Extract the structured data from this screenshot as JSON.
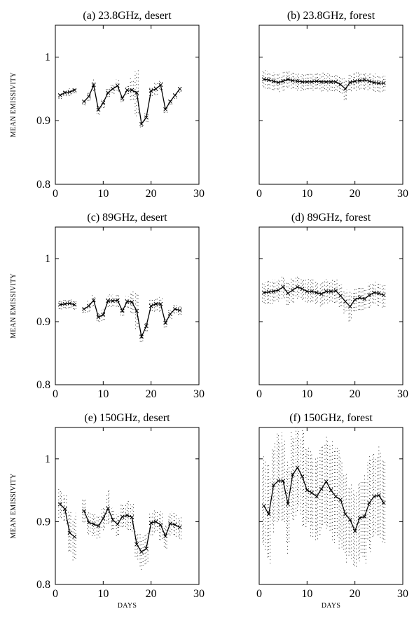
{
  "chart_data": [
    {
      "type": "line",
      "title": "(a) 23.8GHz, desert",
      "xlabel": "",
      "ylabel": "MEAN EMISSIVITY",
      "xlim": [
        0,
        30
      ],
      "ylim": [
        0.8,
        1.05
      ],
      "xticks": [
        "0",
        "10",
        "20",
        "30"
      ],
      "yticks": [
        "0.8",
        "0.9",
        "1"
      ],
      "series": [
        {
          "x": [
            1,
            2,
            3,
            4
          ],
          "y": [
            0.94,
            0.944,
            0.945,
            0.948
          ]
        },
        {
          "x": [
            6,
            7,
            8,
            9,
            10,
            11,
            12,
            13,
            14,
            15,
            16,
            17,
            18,
            19,
            20,
            21,
            22,
            23,
            24,
            25,
            26
          ],
          "y": [
            0.93,
            0.938,
            0.956,
            0.917,
            0.928,
            0.944,
            0.95,
            0.955,
            0.935,
            0.948,
            0.948,
            0.944,
            0.895,
            0.905,
            0.947,
            0.95,
            0.956,
            0.918,
            0.93,
            0.94,
            0.95
          ]
        }
      ],
      "spread": [
        0.006,
        0.006,
        0.006,
        0.006,
        0.006,
        0.008,
        0.01,
        0.008,
        0.008,
        0.008,
        0.008,
        0.01,
        0.006,
        0.008,
        0.02,
        0.04,
        0.006,
        0.008,
        0.008,
        0.01,
        0.008,
        0.006,
        0.006,
        0.006,
        0.006
      ]
    },
    {
      "type": "line",
      "title": "(b) 23.8GHz, forest",
      "xlabel": "",
      "ylabel": "",
      "xlim": [
        0,
        30
      ],
      "ylim": [
        0.8,
        1.05
      ],
      "xticks": [
        "0",
        "10",
        "20",
        "30"
      ],
      "yticks": [],
      "series": [
        {
          "x": [
            1,
            2,
            3,
            4,
            5,
            6,
            7,
            8,
            9,
            10,
            11,
            12,
            13,
            14,
            15,
            16,
            17,
            18,
            19,
            20,
            21,
            22,
            23,
            24,
            25,
            26
          ],
          "y": [
            0.965,
            0.964,
            0.962,
            0.96,
            0.962,
            0.965,
            0.963,
            0.962,
            0.961,
            0.961,
            0.961,
            0.962,
            0.961,
            0.961,
            0.961,
            0.961,
            0.957,
            0.95,
            0.96,
            0.962,
            0.963,
            0.964,
            0.962,
            0.96,
            0.959,
            0.959
          ]
        }
      ],
      "spread": [
        0.015,
        0.015,
        0.015,
        0.015,
        0.015,
        0.015,
        0.015,
        0.015,
        0.015,
        0.015,
        0.015,
        0.015,
        0.015,
        0.015,
        0.015,
        0.015,
        0.015,
        0.02,
        0.015,
        0.015,
        0.015,
        0.015,
        0.015,
        0.015,
        0.015,
        0.015
      ]
    },
    {
      "type": "line",
      "title": "(c) 89GHz, desert",
      "xlabel": "",
      "ylabel": "MEAN EMISSIVITY",
      "xlim": [
        0,
        30
      ],
      "ylim": [
        0.8,
        1.05
      ],
      "xticks": [
        "0",
        "10",
        "20",
        "30"
      ],
      "yticks": [
        "0.8",
        "0.9",
        "1"
      ],
      "series": [
        {
          "x": [
            1,
            2,
            3,
            4
          ],
          "y": [
            0.927,
            0.928,
            0.929,
            0.927
          ]
        },
        {
          "x": [
            6,
            7,
            8,
            9,
            10,
            11,
            12,
            13,
            14,
            15,
            16,
            17,
            18,
            19,
            20,
            21,
            22,
            23,
            24,
            25,
            26
          ],
          "y": [
            0.92,
            0.925,
            0.934,
            0.907,
            0.911,
            0.933,
            0.933,
            0.934,
            0.917,
            0.932,
            0.931,
            0.917,
            0.876,
            0.893,
            0.925,
            0.928,
            0.928,
            0.898,
            0.912,
            0.92,
            0.918
          ]
        }
      ],
      "spread": [
        0.008,
        0.008,
        0.008,
        0.008,
        0.006,
        0.01,
        0.01,
        0.008,
        0.01,
        0.01,
        0.01,
        0.012,
        0.008,
        0.01,
        0.02,
        0.035,
        0.008,
        0.01,
        0.01,
        0.012,
        0.012,
        0.008,
        0.008,
        0.008,
        0.008
      ]
    },
    {
      "type": "line",
      "title": "(d) 89GHz, forest",
      "xlabel": "",
      "ylabel": "",
      "xlim": [
        0,
        30
      ],
      "ylim": [
        0.8,
        1.05
      ],
      "xticks": [
        "0",
        "10",
        "20",
        "30"
      ],
      "yticks": [],
      "series": [
        {
          "x": [
            1,
            2,
            3,
            4,
            5,
            6,
            7,
            8,
            9,
            10,
            11,
            12,
            13,
            14,
            15,
            16,
            17,
            18,
            19,
            20,
            21,
            22,
            23,
            24,
            25,
            26
          ],
          "y": [
            0.946,
            0.947,
            0.948,
            0.95,
            0.955,
            0.945,
            0.95,
            0.955,
            0.952,
            0.948,
            0.948,
            0.946,
            0.944,
            0.948,
            0.948,
            0.949,
            0.941,
            0.932,
            0.924,
            0.935,
            0.938,
            0.936,
            0.942,
            0.946,
            0.945,
            0.942
          ]
        }
      ],
      "spread": [
        0.02,
        0.02,
        0.02,
        0.02,
        0.02,
        0.02,
        0.02,
        0.02,
        0.02,
        0.02,
        0.02,
        0.02,
        0.02,
        0.02,
        0.02,
        0.02,
        0.02,
        0.02,
        0.025,
        0.02,
        0.02,
        0.02,
        0.02,
        0.02,
        0.02,
        0.02
      ]
    },
    {
      "type": "line",
      "title": "(e) 150GHz, desert",
      "xlabel": "DAYS",
      "ylabel": "MEAN EMISSIVITY",
      "xlim": [
        0,
        30
      ],
      "ylim": [
        0.8,
        1.05
      ],
      "xticks": [
        "0",
        "10",
        "20",
        "30"
      ],
      "yticks": [
        "0.8",
        "0.9",
        "1"
      ],
      "series": [
        {
          "x": [
            1,
            2,
            3,
            4
          ],
          "y": [
            0.928,
            0.92,
            0.882,
            0.876
          ]
        },
        {
          "x": [
            6,
            7,
            8,
            9,
            10,
            11,
            12,
            13,
            14,
            15,
            16,
            17,
            18,
            19,
            20,
            21,
            22,
            23,
            24,
            25,
            26
          ],
          "y": [
            0.917,
            0.899,
            0.896,
            0.893,
            0.905,
            0.921,
            0.903,
            0.896,
            0.908,
            0.91,
            0.907,
            0.864,
            0.852,
            0.857,
            0.898,
            0.9,
            0.895,
            0.877,
            0.897,
            0.895,
            0.891
          ]
        }
      ],
      "spread": [
        0.025,
        0.025,
        0.04,
        0.04,
        0.02,
        0.02,
        0.02,
        0.02,
        0.02,
        0.03,
        0.02,
        0.02,
        0.02,
        0.025,
        0.025,
        0.025,
        0.03,
        0.03,
        0.02,
        0.02,
        0.025,
        0.02,
        0.02,
        0.02,
        0.02
      ]
    },
    {
      "type": "line",
      "title": "(f) 150GHz, forest",
      "xlabel": "DAYS",
      "ylabel": "",
      "xlim": [
        0,
        30
      ],
      "ylim": [
        0.8,
        1.05
      ],
      "xticks": [
        "0",
        "10",
        "20",
        "30"
      ],
      "yticks": [],
      "series": [
        {
          "x": [
            1,
            2,
            3,
            4,
            5,
            6,
            7,
            8,
            9,
            10,
            11,
            12,
            13,
            14,
            15,
            16,
            17,
            18,
            19,
            20,
            21,
            22,
            23,
            24,
            25,
            26
          ],
          "y": [
            0.925,
            0.912,
            0.958,
            0.965,
            0.965,
            0.928,
            0.975,
            0.986,
            0.972,
            0.95,
            0.946,
            0.94,
            0.952,
            0.964,
            0.95,
            0.94,
            0.935,
            0.912,
            0.903,
            0.885,
            0.906,
            0.908,
            0.93,
            0.94,
            0.942,
            0.93
          ]
        }
      ],
      "spread": [
        0.08,
        0.08,
        0.08,
        0.08,
        0.08,
        0.08,
        0.08,
        0.08,
        0.08,
        0.07,
        0.07,
        0.07,
        0.08,
        0.08,
        0.08,
        0.08,
        0.08,
        0.08,
        0.07,
        0.07,
        0.07,
        0.08,
        0.08,
        0.08,
        0.08,
        0.08
      ]
    }
  ]
}
